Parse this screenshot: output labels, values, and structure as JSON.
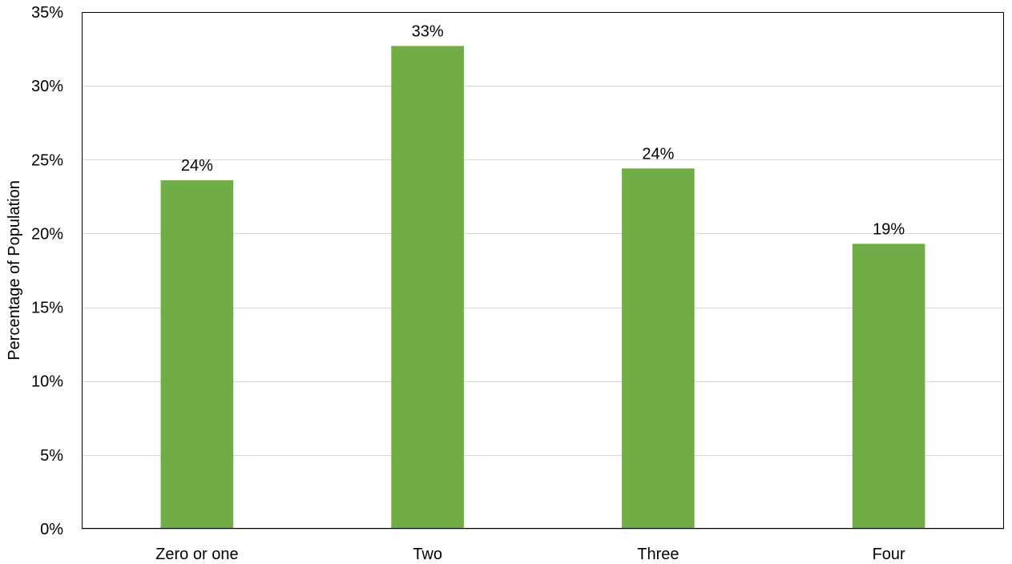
{
  "chart_data": {
    "type": "bar",
    "title": "",
    "xlabel": "",
    "ylabel": "Percentage of Population",
    "categories": [
      "Zero or one",
      "Two",
      "Three",
      "Four"
    ],
    "values": [
      23.6,
      32.7,
      24.4,
      19.3
    ],
    "data_labels": [
      "24%",
      "33%",
      "24%",
      "19%"
    ],
    "ylim": [
      0,
      35
    ],
    "y_ticks": [
      0,
      5,
      10,
      15,
      20,
      25,
      30,
      35
    ],
    "y_tick_labels": [
      "0%",
      "5%",
      "10%",
      "15%",
      "20%",
      "25%",
      "30%",
      "35%"
    ],
    "grid": true,
    "legend": "none",
    "colors": {
      "bar": "#70ad47",
      "grid": "#d9d9d9",
      "frame": "#000000",
      "axis": "#bfbfbf"
    }
  }
}
